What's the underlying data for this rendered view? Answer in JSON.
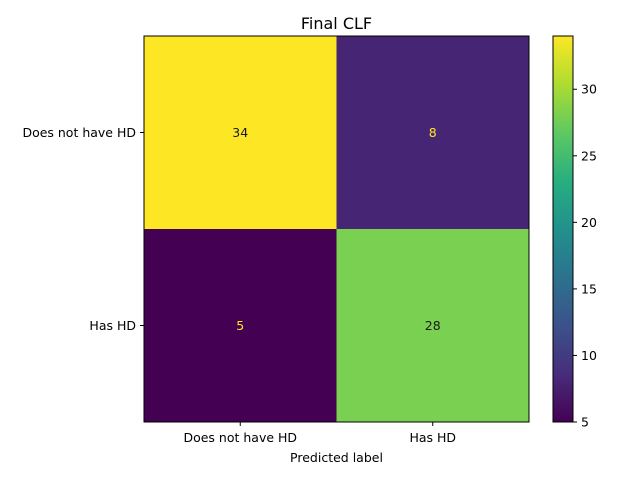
{
  "chart_data": {
    "type": "heatmap",
    "title": "Final CLF",
    "xlabel": "Predicted label",
    "ylabel": "",
    "x_categories": [
      "Does not have HD",
      "Has HD"
    ],
    "y_categories": [
      "Does not have HD",
      "Has HD"
    ],
    "values": [
      [
        34,
        8
      ],
      [
        5,
        28
      ]
    ],
    "colormap": "viridis",
    "colorbar": {
      "range": [
        5,
        34
      ],
      "ticks": [
        "5",
        "10",
        "15",
        "20",
        "25",
        "30"
      ]
    },
    "colors": {
      "cell_34": "#fde725",
      "cell_8": "#46307e",
      "cell_5": "#440154",
      "cell_28": "#7ad151",
      "text_on_dark": "#fde725",
      "text_on_light": "#1a1a1a"
    }
  }
}
